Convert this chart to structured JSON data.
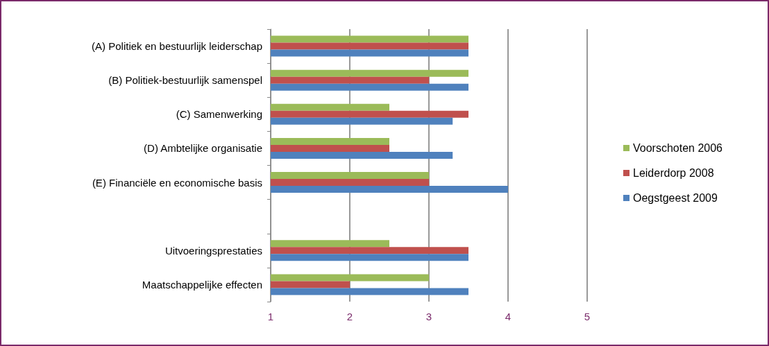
{
  "chart_data": {
    "type": "bar",
    "orientation": "horizontal",
    "categories": [
      "(A) Politiek en bestuurlijk leiderschap",
      "(B) Politiek-bestuurlijk samenspel",
      "(C) Samenwerking",
      "(D) Ambtelijke organisatie",
      "(E) Financiële en economische basis",
      null,
      "Uitvoeringsprestaties",
      "Maatschappelijke effecten"
    ],
    "series": [
      {
        "name": "Voorschoten 2006",
        "color": "#9bbb59",
        "values": [
          3.5,
          3.5,
          2.5,
          2.5,
          3,
          null,
          2.5,
          3
        ]
      },
      {
        "name": "Leiderdorp 2008",
        "color": "#c0504d",
        "values": [
          3.5,
          3,
          3.5,
          2.5,
          3,
          null,
          3.5,
          2
        ]
      },
      {
        "name": "Oegstgeest 2009",
        "color": "#4f81bd",
        "values": [
          3.5,
          3.5,
          3.3,
          3.3,
          4,
          null,
          3.5,
          3.5
        ]
      }
    ],
    "xlim": [
      1,
      5
    ],
    "xticks": [
      1,
      2,
      3,
      4,
      5
    ],
    "grid": "x",
    "legend": "right"
  }
}
